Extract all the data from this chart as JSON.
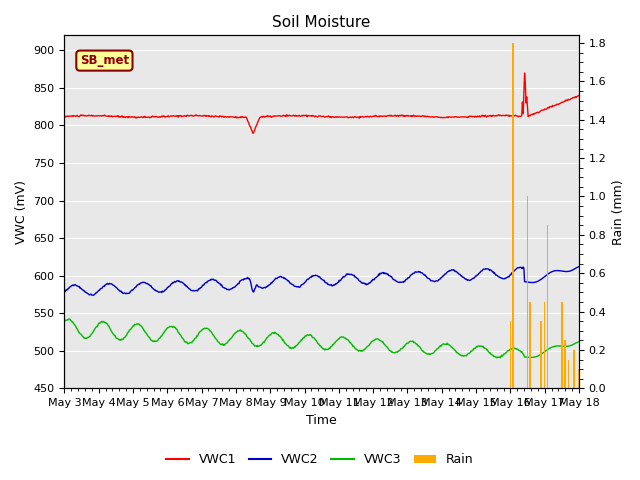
{
  "title": "Soil Moisture",
  "xlabel": "Time",
  "ylabel_left": "VWC (mV)",
  "ylabel_right": "Rain (mm)",
  "ylim_left": [
    450,
    920
  ],
  "ylim_right": [
    0,
    1.84
  ],
  "yticks_left": [
    450,
    500,
    550,
    600,
    650,
    700,
    750,
    800,
    850,
    900
  ],
  "yticks_right": [
    0.0,
    0.2,
    0.4,
    0.6,
    0.8,
    1.0,
    1.2,
    1.4,
    1.6,
    1.8
  ],
  "xtick_labels": [
    "May 3",
    "May 4",
    "May 5",
    "May 6",
    "May 7",
    "May 8",
    "May 9",
    "May 10",
    "May 11",
    "May 12",
    "May 13",
    "May 14",
    "May 15",
    "May 16",
    "May 17",
    "May 18"
  ],
  "background_color": "#e8e8e8",
  "legend_label": "SB_met",
  "legend_bg": "#ffff99",
  "legend_border": "#8B0000",
  "line_colors": {
    "VWC1": "#ff0000",
    "VWC2": "#0000cc",
    "VWC3": "#00bb00",
    "Rain": "#ffaa00"
  },
  "rain_times": [
    13.0,
    13.08,
    13.5,
    13.58,
    13.9,
    14.0,
    14.08,
    14.5,
    14.6,
    14.7,
    14.85,
    15.0
  ],
  "rain_values": [
    0.35,
    1.8,
    1.0,
    0.45,
    0.35,
    0.45,
    0.85,
    0.45,
    0.25,
    0.15,
    0.2,
    0.1
  ]
}
